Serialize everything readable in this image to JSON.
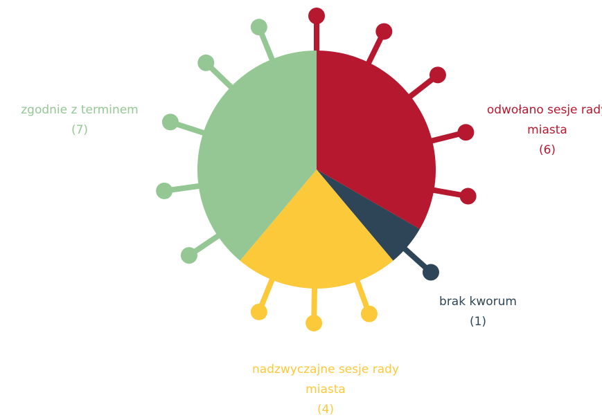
{
  "chart_data": {
    "type": "pie",
    "categories": [
      "odwołano sesje rady miasta",
      "brak kworum",
      "nadzwyczajne sesje rady miasta",
      "zgodnie z terminem"
    ],
    "values": [
      6,
      1,
      4,
      7
    ],
    "value_labels": [
      "(6)",
      "(1)",
      "(4)",
      "(7)"
    ],
    "colors": [
      "#b5182f",
      "#2d4556",
      "#fcc93a",
      "#95c795"
    ]
  }
}
